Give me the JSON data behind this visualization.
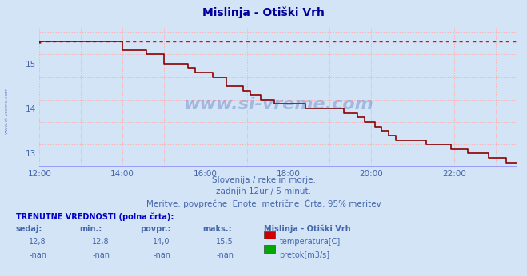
{
  "title": "Mislinja - Otiški Vrh",
  "bg_color": "#d4e4f7",
  "plot_bg_color": "#d4e4f7",
  "line_color": "#8b0000",
  "dotted_line_color": "#ff0000",
  "grid_color": "#ffaaaa",
  "text_color": "#4466aa",
  "border_bottom_color": "#8888ff",
  "ylim": [
    12.7,
    15.8
  ],
  "yticks": [
    13,
    14,
    15
  ],
  "xlim_hours": [
    12.0,
    23.5
  ],
  "xticks_hours": [
    12,
    14,
    16,
    18,
    20,
    22
  ],
  "max_value": 15.5,
  "subtitle1": "Slovenija / reke in morje.",
  "subtitle2": "zadnjih 12ur / 5 minut.",
  "subtitle3": "Meritve: povprečne  Enote: metrične  Črta: 95% meritev",
  "table_title": "TRENUTNE VREDNOSTI (polna črta):",
  "col_headers": [
    "sedaj:",
    "min.:",
    "povpr.:",
    "maks.:"
  ],
  "row1_vals": [
    "12,8",
    "12,8",
    "14,0",
    "15,5"
  ],
  "row2_vals": [
    "-nan",
    "-nan",
    "-nan",
    "-nan"
  ],
  "legend_station": "Mislinja - Otiški Vrh",
  "legend1_label": "temperatura[C]",
  "legend1_color": "#cc0000",
  "legend2_label": "pretok[m3/s]",
  "legend2_color": "#00aa00",
  "watermark_text": "www.si-vreme.com",
  "temp_data": [
    15.5,
    15.5,
    15.5,
    15.5,
    15.5,
    15.5,
    15.5,
    15.5,
    15.5,
    15.5,
    15.5,
    15.5,
    15.5,
    15.5,
    15.5,
    15.5,
    15.5,
    15.5,
    15.5,
    15.5,
    15.5,
    15.5,
    15.5,
    15.5,
    15.3,
    15.3,
    15.3,
    15.3,
    15.3,
    15.3,
    15.3,
    15.2,
    15.2,
    15.2,
    15.2,
    15.2,
    15.0,
    15.0,
    15.0,
    15.0,
    15.0,
    15.0,
    15.0,
    14.9,
    14.9,
    14.8,
    14.8,
    14.8,
    14.8,
    14.8,
    14.7,
    14.7,
    14.7,
    14.7,
    14.5,
    14.5,
    14.5,
    14.5,
    14.5,
    14.4,
    14.4,
    14.3,
    14.3,
    14.3,
    14.2,
    14.2,
    14.2,
    14.2,
    14.1,
    14.1,
    14.1,
    14.1,
    14.1,
    14.1,
    14.1,
    14.1,
    14.1,
    14.0,
    14.0,
    14.0,
    14.0,
    14.0,
    14.0,
    14.0,
    14.0,
    14.0,
    14.0,
    14.0,
    13.9,
    13.9,
    13.9,
    13.9,
    13.8,
    13.8,
    13.7,
    13.7,
    13.7,
    13.6,
    13.6,
    13.5,
    13.5,
    13.4,
    13.4,
    13.3,
    13.3,
    13.3,
    13.3,
    13.3,
    13.3,
    13.3,
    13.3,
    13.3,
    13.2,
    13.2,
    13.2,
    13.2,
    13.2,
    13.2,
    13.2,
    13.1,
    13.1,
    13.1,
    13.1,
    13.1,
    13.0,
    13.0,
    13.0,
    13.0,
    13.0,
    13.0,
    12.9,
    12.9,
    12.9,
    12.9,
    12.9,
    12.8,
    12.8,
    12.8,
    12.8,
    12.8
  ]
}
